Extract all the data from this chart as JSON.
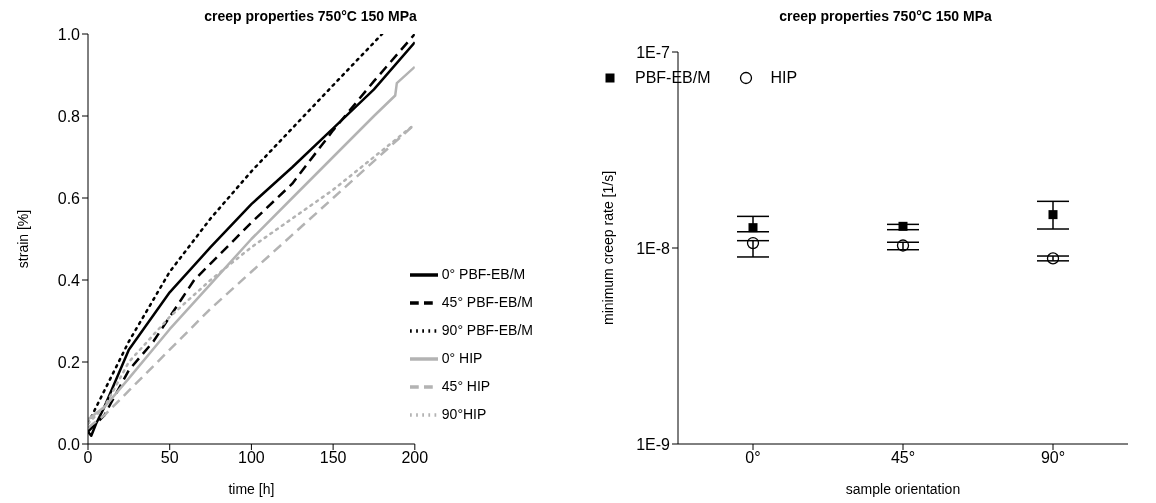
{
  "chart_data": [
    {
      "type": "line",
      "title": "creep properties 750°C 150 MPa",
      "xlabel": "time [h]",
      "ylabel": "strain [%]",
      "xlim": [
        0,
        200
      ],
      "xticks": [
        0,
        50,
        100,
        150,
        200
      ],
      "ylim": [
        0,
        1
      ],
      "yticks": [
        {
          "value": 0,
          "label": "0.0"
        },
        {
          "value": 0.2,
          "label": "0.2"
        },
        {
          "value": 0.4,
          "label": "0.4"
        },
        {
          "value": 0.6,
          "label": "0.6"
        },
        {
          "value": 0.8,
          "label": "0.8"
        },
        {
          "value": 1,
          "label": "1.0"
        }
      ],
      "grid": false,
      "legend": "bottom right",
      "marker": "none",
      "series": [
        {
          "name": "0° PBF-EB/M",
          "color": "#000000",
          "line_style": "solid",
          "x": [
            0,
            2,
            5,
            10,
            25,
            50,
            75,
            100,
            125,
            150,
            175,
            200
          ],
          "values": [
            0.03,
            0.02,
            0.05,
            0.09,
            0.23,
            0.37,
            0.48,
            0.585,
            0.675,
            0.77,
            0.865,
            0.98
          ]
        },
        {
          "name": "45° PBF-EB/M",
          "color": "#000000",
          "line_style": "dashed",
          "x": [
            0,
            5,
            10,
            25,
            40,
            50,
            60,
            65,
            75,
            100,
            125,
            150,
            175,
            200
          ],
          "values": [
            0.03,
            0.05,
            0.07,
            0.18,
            0.25,
            0.31,
            0.37,
            0.4,
            0.44,
            0.54,
            0.635,
            0.765,
            0.885,
            1.0
          ]
        },
        {
          "name": "90° PBF-EB/M",
          "color": "#000000",
          "line_style": "dotted",
          "x": [
            0,
            5,
            10,
            25,
            50,
            75,
            100,
            125,
            150,
            180
          ],
          "values": [
            0.05,
            0.09,
            0.13,
            0.25,
            0.42,
            0.55,
            0.665,
            0.77,
            0.875,
            1.0
          ]
        },
        {
          "name": "0° HIP",
          "color": "#b3b3b3",
          "line_style": "solid",
          "x": [
            0,
            10,
            25,
            50,
            75,
            100,
            125,
            150,
            175,
            188,
            189,
            200
          ],
          "values": [
            0.06,
            0.09,
            0.16,
            0.28,
            0.39,
            0.5,
            0.6,
            0.7,
            0.8,
            0.85,
            0.88,
            0.92
          ]
        },
        {
          "name": "45° HIP",
          "color": "#b3b3b3",
          "line_style": "dashed",
          "x": [
            0,
            10,
            25,
            50,
            75,
            100,
            125,
            150,
            175,
            200
          ],
          "values": [
            0.04,
            0.07,
            0.13,
            0.23,
            0.33,
            0.42,
            0.51,
            0.6,
            0.69,
            0.78
          ]
        },
        {
          "name": "90°HIP",
          "color": "#b3b3b3",
          "line_style": "dotted",
          "x": [
            0,
            10,
            25,
            50,
            75,
            100,
            125,
            150,
            175,
            200
          ],
          "values": [
            0.05,
            0.09,
            0.2,
            0.31,
            0.4,
            0.48,
            0.55,
            0.62,
            0.7,
            0.78
          ]
        }
      ]
    },
    {
      "type": "scatter",
      "title": "creep properties 750°C 150 MPa",
      "xlabel": "sample orientation",
      "ylabel": "minimum creep rate [1/s]",
      "categories": [
        "0°",
        "45°",
        "90°"
      ],
      "log": "y",
      "ylim": [
        1e-09,
        1e-07
      ],
      "yticks": [
        {
          "value": 1e-09,
          "label": "1E-9"
        },
        {
          "value": 1e-08,
          "label": "1E-8"
        },
        {
          "value": 1e-07,
          "label": "1E-7"
        }
      ],
      "grid": false,
      "legend": "top",
      "series": [
        {
          "name": "PBF-EB/M",
          "color": "#000000",
          "marker": "square",
          "values": [
            1.27e-08,
            1.29e-08,
            1.48e-08
          ],
          "errors": [
            [
              1.21e-08,
              1.45e-08
            ],
            [
              1.24e-08,
              1.32e-08
            ],
            [
              1.25e-08,
              1.73e-08
            ]
          ]
        },
        {
          "name": "HIP",
          "color": "#000000",
          "marker": "circle",
          "values": [
            1.06e-08,
            1.03e-08,
            8.85e-09
          ],
          "errors": [
            [
              9e-09,
              1.09e-08
            ],
            [
              9.8e-09,
              1.07e-08
            ],
            [
              8.6e-09,
              9.1e-09
            ]
          ]
        }
      ]
    }
  ]
}
